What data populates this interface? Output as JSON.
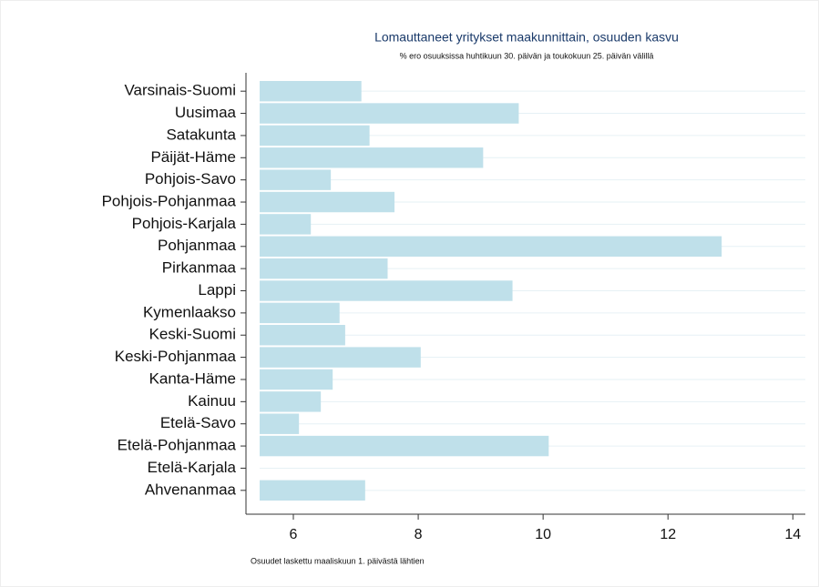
{
  "chart_data": {
    "type": "barh",
    "title": "Lomauttaneet yritykset maakunnittain, osuuden kasvu",
    "subtitle": "% ero osuuksissa huhtikuun 30. päivän ja toukokuun 25. päivän välillä",
    "note": "Osuudet laskettu maaliskuun 1. päivästä lähtien",
    "categories": [
      "Varsinais-Suomi",
      "Uusimaa",
      "Satakunta",
      "Päijät-Häme",
      "Pohjois-Savo",
      "Pohjois-Pohjanmaa",
      "Pohjois-Karjala",
      "Pohjanmaa",
      "Pirkanmaa",
      "Lappi",
      "Kymenlaakso",
      "Keski-Suomi",
      "Keski-Pohjanmaa",
      "Kanta-Häme",
      "Kainuu",
      "Etelä-Savo",
      "Etelä-Pohjanmaa",
      "Etelä-Karjala",
      "Ahvenanmaa"
    ],
    "values": [
      7.09,
      9.61,
      7.22,
      9.04,
      6.6,
      7.62,
      6.28,
      12.86,
      7.51,
      9.51,
      6.74,
      6.83,
      8.04,
      6.63,
      6.44,
      6.09,
      10.09,
      5.4,
      7.15
    ],
    "color": "#bfe0ea",
    "xlim": [
      5.46,
      14.2
    ],
    "xticks": [
      6,
      8,
      10,
      12,
      14
    ],
    "grid": true
  }
}
